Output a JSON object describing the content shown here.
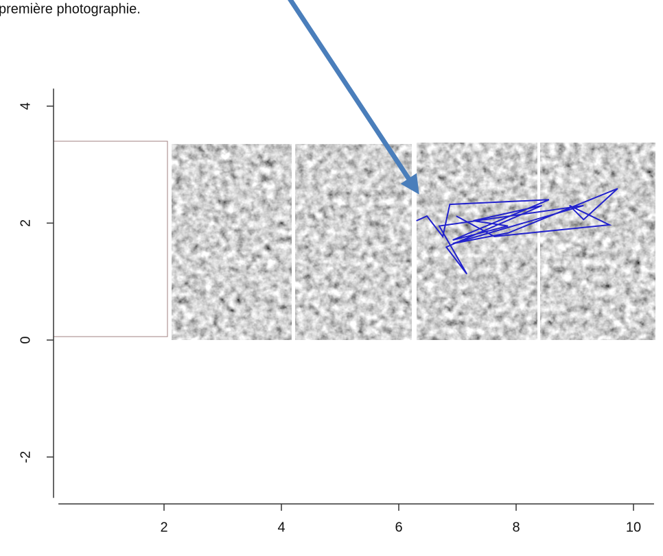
{
  "chart_data": {
    "type": "line",
    "title": "première photographie.",
    "x": [
      6.3,
      6.48,
      6.75,
      6.87,
      8.56,
      6.92,
      7.86,
      7.27,
      8.44,
      6.81,
      7.16,
      6.69,
      9.15,
      6.92,
      7.86,
      9.73,
      9.15,
      8.91,
      9.59,
      7.63,
      6.98
    ],
    "series": [
      {
        "color": "#2222cc",
        "values": [
          2.04,
          2.12,
          1.77,
          2.32,
          2.4,
          1.71,
          1.95,
          2.04,
          2.3,
          1.59,
          1.13,
          1.95,
          2.3,
          1.65,
          1.83,
          2.59,
          2.06,
          2.3,
          1.97,
          1.77,
          2.12
        ]
      }
    ],
    "xlim": [
      0.2,
      10.35
    ],
    "ylim": [
      -2.7,
      4.3
    ],
    "xticks": [
      2,
      4,
      6,
      8,
      10
    ],
    "yticks": [
      -2,
      0,
      2,
      4
    ]
  }
}
